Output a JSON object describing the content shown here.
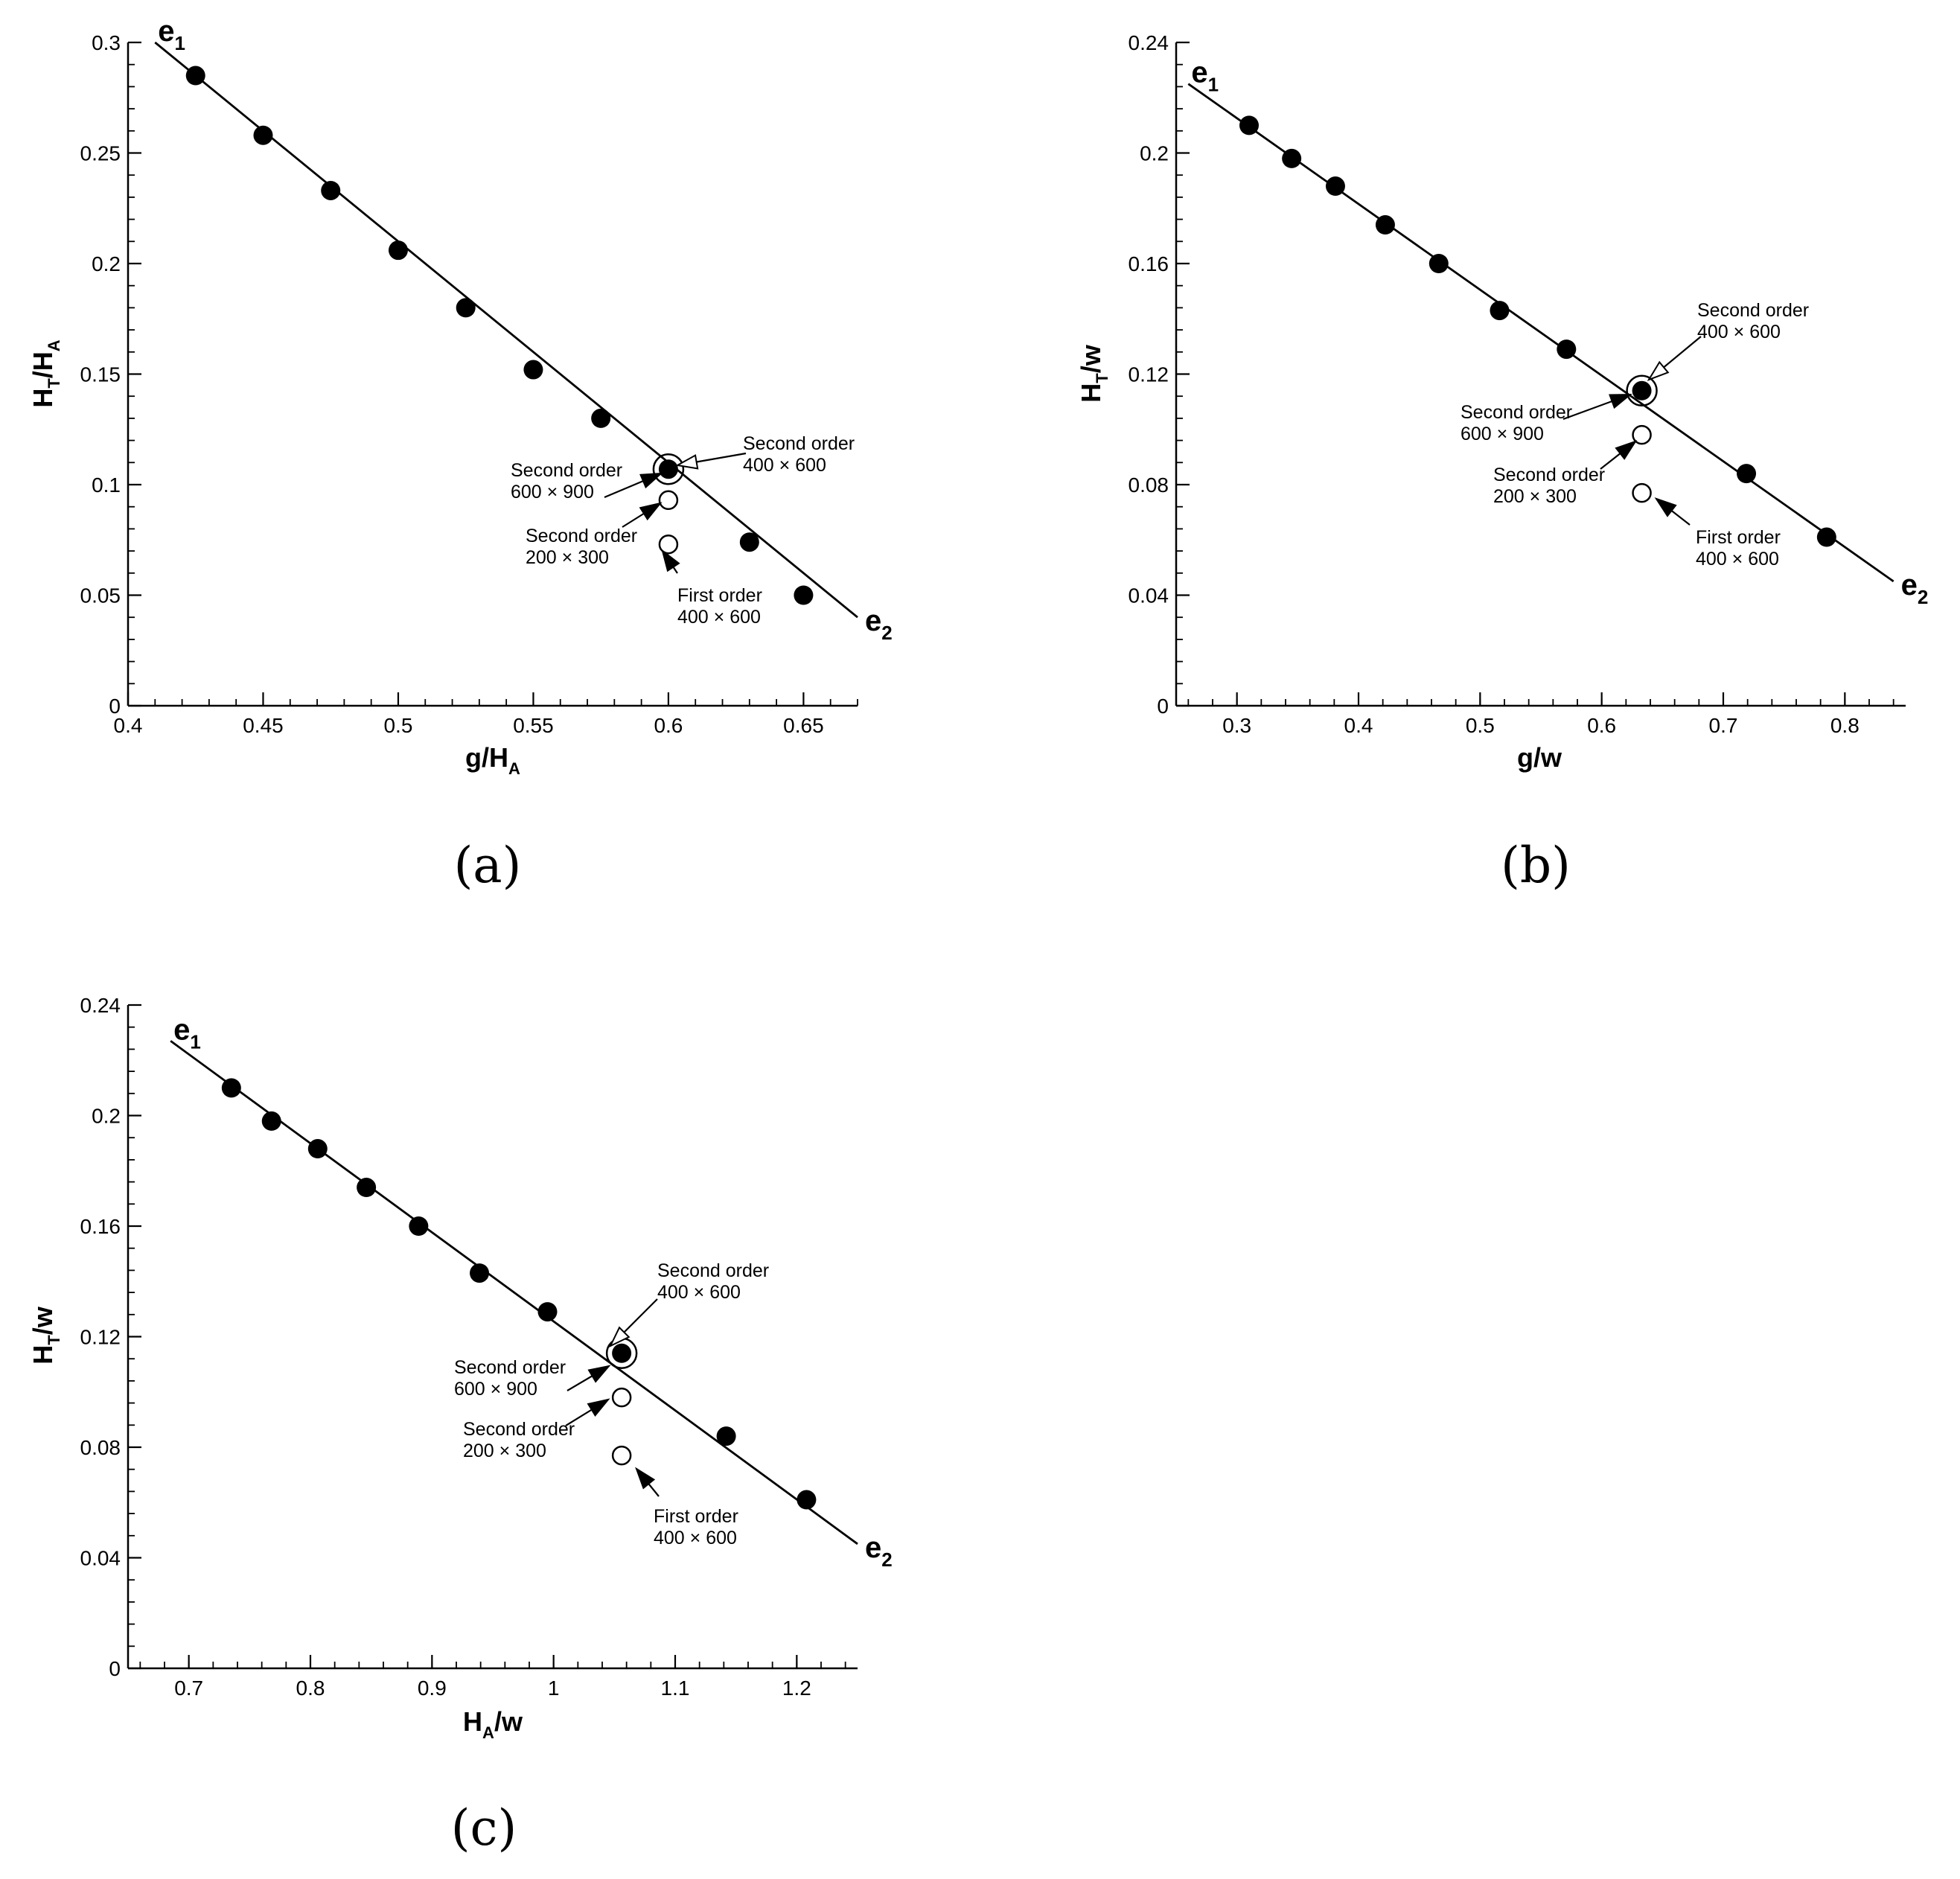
{
  "chart_data": [
    {
      "id": "a",
      "type": "scatter",
      "panel_label": "(a)",
      "xlabel": {
        "main": "g/H",
        "sub": "A"
      },
      "ylabel": {
        "main": "H",
        "sub": "T",
        "mid": "/H",
        "sub2": "A"
      },
      "xlim": [
        0.4,
        0.67
      ],
      "ylim": [
        0,
        0.3
      ],
      "xticks": [
        0.4,
        0.45,
        0.5,
        0.55,
        0.6,
        0.65
      ],
      "xtick_labels": [
        "0.4",
        "0.45",
        "0.5",
        "0.55",
        "0.6",
        "0.65"
      ],
      "yticks": [
        0,
        0.05,
        0.1,
        0.15,
        0.2,
        0.25,
        0.3
      ],
      "ytick_labels": [
        "0",
        "0.05",
        "0.1",
        "0.15",
        "0.2",
        "0.25",
        "0.3"
      ],
      "y_minor_step": 0.01,
      "x_minor_step": 0.01,
      "line": {
        "x": [
          0.41,
          0.67
        ],
        "y": [
          0.3,
          0.04
        ]
      },
      "endpoints": [
        {
          "main": "e",
          "sub": "1",
          "x": 0.41,
          "y": 0.3
        },
        {
          "main": "e",
          "sub": "2",
          "x": 0.67,
          "y": 0.04
        }
      ],
      "filled_points": {
        "x": [
          0.425,
          0.45,
          0.475,
          0.5,
          0.525,
          0.55,
          0.575,
          0.6,
          0.63,
          0.65
        ],
        "y": [
          0.285,
          0.258,
          0.233,
          0.206,
          0.18,
          0.152,
          0.13,
          0.107,
          0.074,
          0.05
        ]
      },
      "open_points": {
        "x": [
          0.6,
          0.6
        ],
        "y": [
          0.093,
          0.073
        ]
      },
      "ringed_point": {
        "x": 0.6,
        "y": 0.107
      },
      "annotations": [
        {
          "line1": "Second order",
          "line2": "400 × 600",
          "arrow": "open"
        },
        {
          "line1": "Second order",
          "line2": "600 × 900",
          "arrow": "solid"
        },
        {
          "line1": "Second order",
          "line2": "200 × 300",
          "arrow": "solid"
        },
        {
          "line1": "First order",
          "line2": "400 × 600",
          "arrow": "solid"
        }
      ]
    },
    {
      "id": "b",
      "type": "scatter",
      "panel_label": "(b)",
      "xlabel": {
        "main": "g/w",
        "sub": ""
      },
      "ylabel": {
        "main": "H",
        "sub": "T",
        "mid": "/w",
        "sub2": ""
      },
      "xlim": [
        0.25,
        0.85
      ],
      "ylim": [
        0,
        0.24
      ],
      "xticks": [
        0.3,
        0.4,
        0.5,
        0.6,
        0.7,
        0.8
      ],
      "xtick_labels": [
        "0.3",
        "0.4",
        "0.5",
        "0.6",
        "0.7",
        "0.8"
      ],
      "yticks": [
        0,
        0.04,
        0.08,
        0.12,
        0.16,
        0.2,
        0.24
      ],
      "ytick_labels": [
        "0",
        "0.04",
        "0.08",
        "0.12",
        "0.16",
        "0.2",
        "0.24"
      ],
      "y_minor_step": 0.008,
      "x_minor_step": 0.02,
      "line": {
        "x": [
          0.26,
          0.84
        ],
        "y": [
          0.225,
          0.045
        ]
      },
      "endpoints": [
        {
          "main": "e",
          "sub": "1",
          "x": 0.26,
          "y": 0.225
        },
        {
          "main": "e",
          "sub": "2",
          "x": 0.84,
          "y": 0.045
        }
      ],
      "filled_points": {
        "x": [
          0.31,
          0.345,
          0.381,
          0.422,
          0.466,
          0.516,
          0.571,
          0.633,
          0.719,
          0.785
        ],
        "y": [
          0.21,
          0.198,
          0.188,
          0.174,
          0.16,
          0.143,
          0.129,
          0.114,
          0.084,
          0.061
        ]
      },
      "open_points": {
        "x": [
          0.633,
          0.633
        ],
        "y": [
          0.098,
          0.077
        ]
      },
      "ringed_point": {
        "x": 0.633,
        "y": 0.114
      },
      "annotations": [
        {
          "line1": "Second order",
          "line2": "400 × 600",
          "arrow": "open"
        },
        {
          "line1": "Second order",
          "line2": "600 × 900",
          "arrow": "solid"
        },
        {
          "line1": "Second order",
          "line2": "200 × 300",
          "arrow": "solid"
        },
        {
          "line1": "First order",
          "line2": "400 × 600",
          "arrow": "solid"
        }
      ]
    },
    {
      "id": "c",
      "type": "scatter",
      "panel_label": "(c)",
      "xlabel": {
        "main": "H",
        "sub": "A",
        "mid": "/w"
      },
      "ylabel": {
        "main": "H",
        "sub": "T",
        "mid": "/w",
        "sub2": ""
      },
      "xlim": [
        0.65,
        1.25
      ],
      "ylim": [
        0,
        0.24
      ],
      "xticks": [
        0.7,
        0.8,
        0.9,
        1.0,
        1.1,
        1.2
      ],
      "xtick_labels": [
        "0.7",
        "0.8",
        "0.9",
        "1",
        "1.1",
        "1.2"
      ],
      "yticks": [
        0,
        0.04,
        0.08,
        0.12,
        0.16,
        0.2,
        0.24
      ],
      "ytick_labels": [
        "0",
        "0.04",
        "0.08",
        "0.12",
        "0.16",
        "0.2",
        "0.24"
      ],
      "y_minor_step": 0.008,
      "x_minor_step": 0.02,
      "line": {
        "x": [
          0.685,
          1.25
        ],
        "y": [
          0.227,
          0.045
        ]
      },
      "endpoints": [
        {
          "main": "e",
          "sub": "1",
          "x": 0.685,
          "y": 0.227
        },
        {
          "main": "e",
          "sub": "2",
          "x": 1.25,
          "y": 0.045
        }
      ],
      "filled_points": {
        "x": [
          0.735,
          0.768,
          0.806,
          0.846,
          0.889,
          0.939,
          0.995,
          1.056,
          1.142,
          1.208
        ],
        "y": [
          0.21,
          0.198,
          0.188,
          0.174,
          0.16,
          0.143,
          0.129,
          0.114,
          0.084,
          0.061
        ]
      },
      "open_points": {
        "x": [
          1.056,
          1.056
        ],
        "y": [
          0.098,
          0.077
        ]
      },
      "ringed_point": {
        "x": 1.056,
        "y": 0.114
      },
      "annotations": [
        {
          "line1": "Second order",
          "line2": "400 × 600",
          "arrow": "open"
        },
        {
          "line1": "Second order",
          "line2": "600 × 900",
          "arrow": "solid"
        },
        {
          "line1": "Second order",
          "line2": "200 × 300",
          "arrow": "solid"
        },
        {
          "line1": "First order",
          "line2": "400 × 600",
          "arrow": "solid"
        }
      ]
    }
  ]
}
